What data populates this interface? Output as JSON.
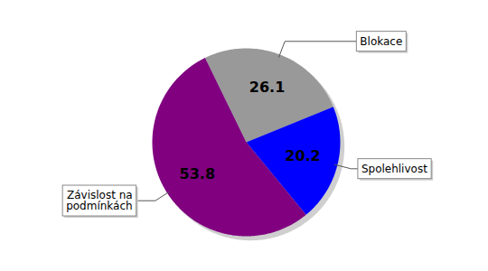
{
  "chart_data": {
    "type": "pie",
    "categories": [
      "Blokace",
      "Spolehlivost",
      "Závislost na podmínkách"
    ],
    "values": [
      26.1,
      20.2,
      53.8
    ],
    "colors": [
      "#999999",
      "#0000ff",
      "#800080"
    ],
    "data_labels": true
  }
}
